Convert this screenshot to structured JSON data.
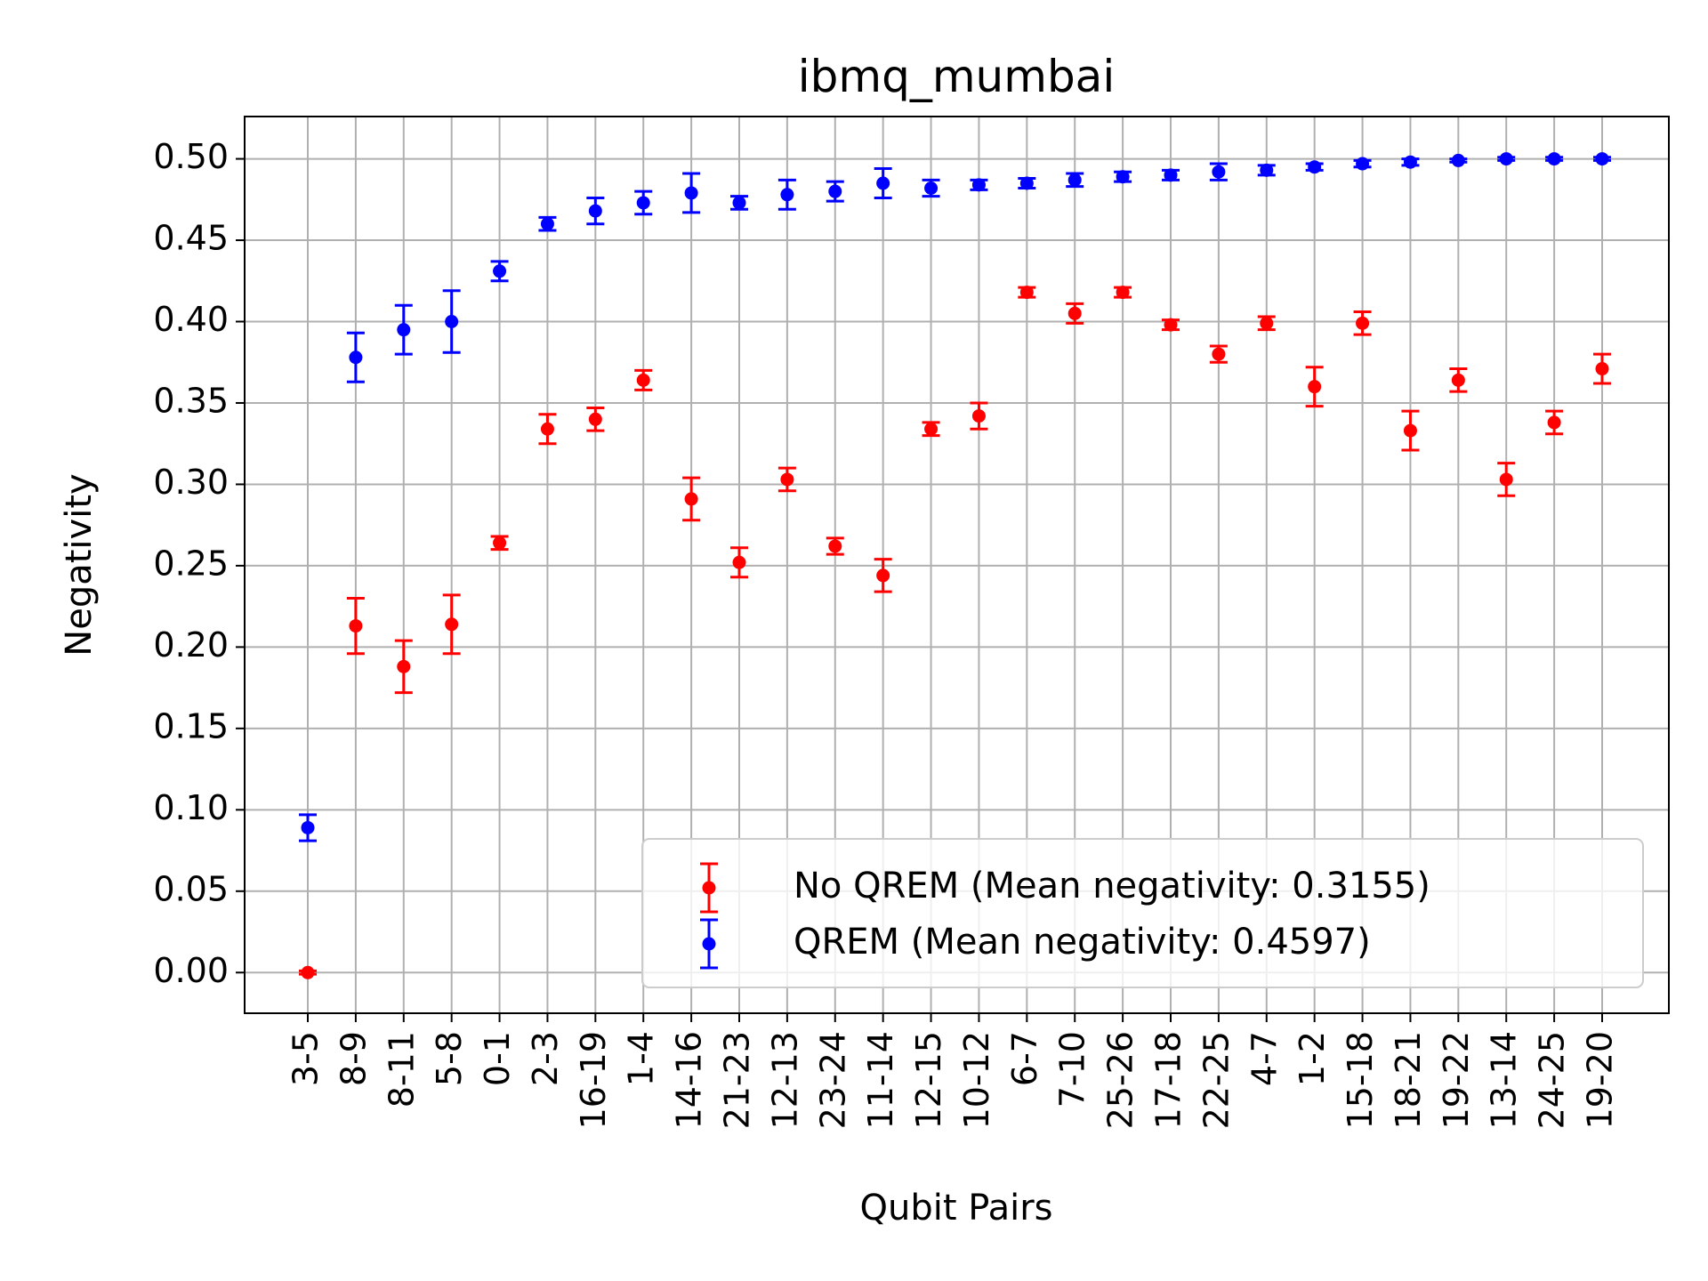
{
  "chart_data": {
    "type": "scatter",
    "title": "ibmq_mumbai",
    "xlabel": "Qubit Pairs",
    "ylabel": "Negativity",
    "ylim": [
      -0.025,
      0.526
    ],
    "yticks": [
      "0.00",
      "0.05",
      "0.10",
      "0.15",
      "0.20",
      "0.25",
      "0.30",
      "0.35",
      "0.40",
      "0.45",
      "0.50"
    ],
    "grid": true,
    "legend_position": "lower-right",
    "categories": [
      "3-5",
      "8-9",
      "8-11",
      "5-8",
      "0-1",
      "2-3",
      "16-19",
      "1-4",
      "14-16",
      "21-23",
      "12-13",
      "23-24",
      "11-14",
      "12-15",
      "10-12",
      "6-7",
      "7-10",
      "25-26",
      "17-18",
      "22-25",
      "4-7",
      "1-2",
      "15-18",
      "18-21",
      "19-22",
      "13-14",
      "24-25",
      "19-20"
    ],
    "series": [
      {
        "name": "No QREM (Mean negativity: 0.3155)",
        "color": "#ff0000",
        "values": [
          0.0,
          0.213,
          0.188,
          0.214,
          0.264,
          0.334,
          0.34,
          0.364,
          0.291,
          0.252,
          0.303,
          0.262,
          0.244,
          0.334,
          0.342,
          0.418,
          0.405,
          0.418,
          0.398,
          0.38,
          0.399,
          0.36,
          0.399,
          0.333,
          0.364,
          0.303,
          0.338,
          0.371
        ],
        "errors": [
          0.001,
          0.017,
          0.016,
          0.018,
          0.004,
          0.009,
          0.007,
          0.006,
          0.013,
          0.009,
          0.007,
          0.005,
          0.01,
          0.004,
          0.008,
          0.003,
          0.006,
          0.003,
          0.003,
          0.005,
          0.004,
          0.012,
          0.007,
          0.012,
          0.007,
          0.01,
          0.007,
          0.009
        ]
      },
      {
        "name": "QREM (Mean negativity: 0.4597)",
        "color": "#0000ff",
        "values": [
          0.089,
          0.378,
          0.395,
          0.4,
          0.431,
          0.46,
          0.468,
          0.473,
          0.479,
          0.473,
          0.478,
          0.48,
          0.485,
          0.482,
          0.484,
          0.485,
          0.487,
          0.489,
          0.49,
          0.492,
          0.493,
          0.495,
          0.497,
          0.498,
          0.499,
          0.5,
          0.5,
          0.5
        ],
        "errors": [
          0.008,
          0.015,
          0.015,
          0.019,
          0.006,
          0.004,
          0.008,
          0.007,
          0.012,
          0.004,
          0.009,
          0.006,
          0.009,
          0.005,
          0.003,
          0.003,
          0.004,
          0.003,
          0.003,
          0.005,
          0.003,
          0.002,
          0.002,
          0.002,
          0.001,
          0.001,
          0.001,
          0.001
        ]
      }
    ]
  }
}
